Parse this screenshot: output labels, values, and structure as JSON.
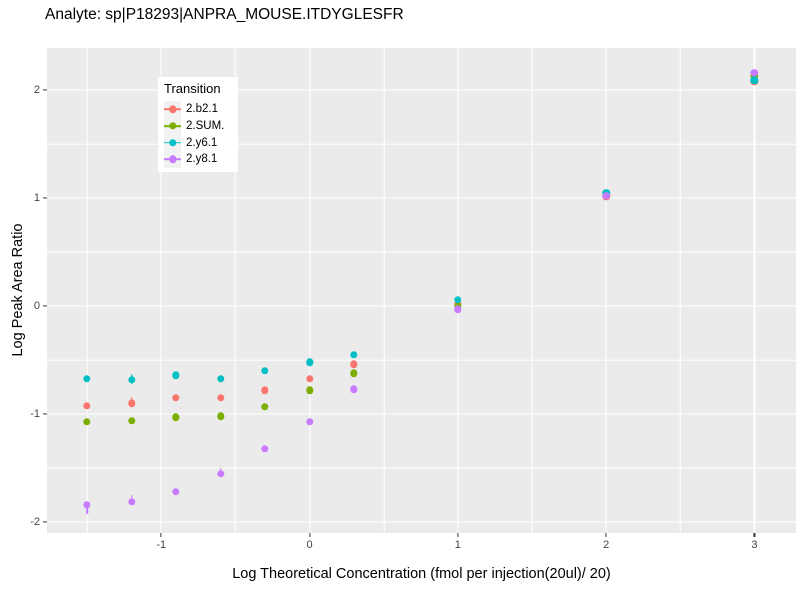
{
  "title": "Analyte: sp|P18293|ANPRA_MOUSE.ITDYGLESFR",
  "chart_data": {
    "type": "scatter",
    "title": "Analyte: sp|P18293|ANPRA_MOUSE.ITDYGLESFR",
    "xlabel": "Log Theoretical Concentration (fmol per injection(20ul)/ 20)",
    "ylabel": "Log Peak Area Ratio",
    "xlim": [
      -1.77,
      3.28
    ],
    "ylim": [
      -2.1,
      2.39
    ],
    "x_ticks": [
      -1,
      0,
      1,
      2,
      3
    ],
    "y_ticks": [
      -2,
      -1,
      0,
      1,
      2
    ],
    "x_minor_ticks": [
      -1.5,
      -0.5,
      0.5,
      1.5,
      2.5
    ],
    "y_minor_ticks": [
      -1.5,
      -0.5,
      0.5,
      1.5
    ],
    "grid": true,
    "panel_background": "#EBEBEB",
    "grid_color": "#FFFFFF",
    "legend_title": "Transition",
    "legend_position": "inside top-left",
    "x": [
      -1.5,
      -1.2,
      -0.9,
      -0.6,
      -0.3,
      0,
      0.3,
      1,
      2,
      3
    ],
    "series": [
      {
        "name": "2.b2.1",
        "color": "#F8766D",
        "values": [
          -0.92,
          -0.9,
          -0.85,
          -0.85,
          -0.78,
          -0.67,
          -0.54,
          0.02,
          1.01,
          2.08
        ]
      },
      {
        "name": "2.SUM.",
        "color": "#7CAE00",
        "values": [
          -1.07,
          -1.06,
          -1.03,
          -1.02,
          -0.93,
          -0.78,
          -0.62,
          0.0,
          1.03,
          2.13
        ]
      },
      {
        "name": "2.y6.1",
        "color": "#00BFC4",
        "values": [
          -0.67,
          -0.68,
          -0.64,
          -0.67,
          -0.6,
          -0.52,
          -0.45,
          0.06,
          1.05,
          2.09
        ]
      },
      {
        "name": "2.y8.1",
        "color": "#C77CFF",
        "values": [
          -1.84,
          -1.81,
          -1.72,
          -1.55,
          -1.32,
          -1.07,
          -0.77,
          -0.03,
          1.02,
          2.16
        ]
      }
    ],
    "error_stems": [
      {
        "series": "2.b2.1",
        "x": -1.2,
        "up": 0.06,
        "down": 0.02
      },
      {
        "series": "2.y6.1",
        "x": -1.2,
        "up": 0.05,
        "down": 0.04
      },
      {
        "series": "2.y8.1",
        "x": -1.5,
        "up": 0.02,
        "down": 0.08
      },
      {
        "series": "2.y8.1",
        "x": -1.2,
        "up": 0.06,
        "down": 0.02
      },
      {
        "series": "2.y8.1",
        "x": -0.6,
        "up": 0.05,
        "down": 0.02
      }
    ]
  }
}
